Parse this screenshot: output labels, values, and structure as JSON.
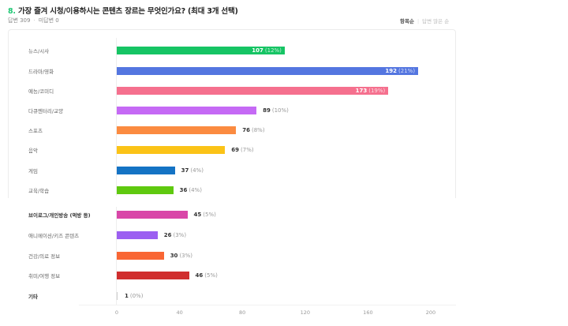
{
  "question": {
    "number": "8.",
    "title": "가장 즐겨 시청/이용하시는 콘텐츠 장르는 무엇인가요? (최대 3개 선택)",
    "responses_label": "답변 309",
    "no_response_label": "미답변 0"
  },
  "sort": {
    "options": [
      "항목순",
      "답변 많은 순"
    ],
    "active": "항목순"
  },
  "colors": {
    "accent": "#1ec773"
  },
  "chart_data": {
    "type": "bar",
    "orientation": "horizontal",
    "title": "가장 즐겨 시청/이용하시는 콘텐츠 장르는 무엇인가요? (최대 3개 선택)",
    "xlabel": "",
    "ylabel": "",
    "xlim": [
      0,
      200
    ],
    "xticks": [
      0,
      40,
      80,
      120,
      160,
      200
    ],
    "grid": false,
    "categories": [
      "뉴스/시사",
      "드라마/영화",
      "예능/코미디",
      "다큐멘터리/교양",
      "스포츠",
      "음악",
      "게임",
      "교육/학습",
      "브이로그/개인방송 (먹방 등)",
      "애니메이션/키즈 콘텐츠",
      "건강/의료 정보",
      "취미/여행 정보",
      "기타"
    ],
    "values": [
      107,
      192,
      173,
      89,
      76,
      69,
      37,
      36,
      45,
      26,
      30,
      46,
      1
    ],
    "percents": [
      "12%",
      "21%",
      "19%",
      "10%",
      "8%",
      "7%",
      "4%",
      "4%",
      "5%",
      "3%",
      "3%",
      "5%",
      "0%"
    ],
    "bar_colors": [
      "#16c464",
      "#5476e0",
      "#f5708e",
      "#c56af5",
      "#fb8b40",
      "#fbc317",
      "#1473c4",
      "#5fc90f",
      "#d946a8",
      "#9c5ff1",
      "#f96634",
      "#d02e2e",
      "#cccccc"
    ]
  },
  "rows": [
    {
      "label": "뉴스/시사",
      "value": "107",
      "pct": "(12%)"
    },
    {
      "label": "드라마/영화",
      "value": "192",
      "pct": "(21%)"
    },
    {
      "label": "예능/코미디",
      "value": "173",
      "pct": "(19%)"
    },
    {
      "label": "다큐멘터리/교양",
      "value": "89",
      "pct": "(10%)"
    },
    {
      "label": "스포츠",
      "value": "76",
      "pct": "(8%)"
    },
    {
      "label": "음악",
      "value": "69",
      "pct": "(7%)"
    },
    {
      "label": "게임",
      "value": "37",
      "pct": "(4%)"
    },
    {
      "label": "교육/학습",
      "value": "36",
      "pct": "(4%)"
    },
    {
      "label": "브이로그/개인방송 (먹방 등)",
      "value": "45",
      "pct": "(5%)"
    },
    {
      "label": "애니메이션/키즈 콘텐츠",
      "value": "26",
      "pct": "(3%)"
    },
    {
      "label": "건강/의료 정보",
      "value": "30",
      "pct": "(3%)"
    },
    {
      "label": "취미/여행 정보",
      "value": "46",
      "pct": "(5%)"
    },
    {
      "label": "기타",
      "value": "1",
      "pct": "(0%)"
    }
  ],
  "axis": {
    "ticks": [
      "0",
      "40",
      "80",
      "120",
      "160",
      "200"
    ]
  }
}
